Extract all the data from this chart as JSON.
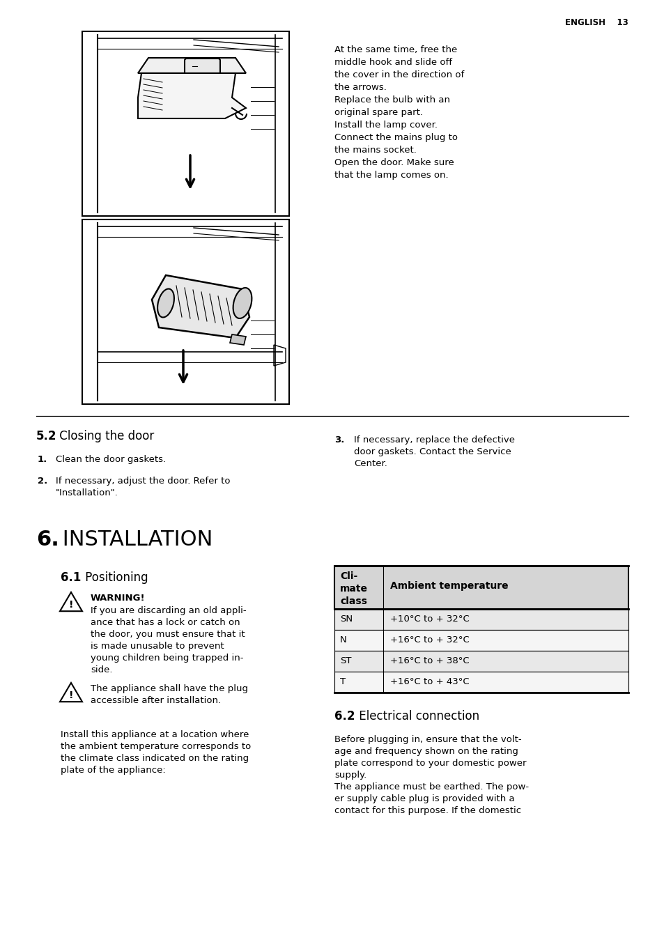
{
  "page_header_right": "ENGLISH    13",
  "right_col_text": [
    "At the same time, free the",
    "middle hook and slide off",
    "the cover in the direction of",
    "the arrows.",
    "Replace the bulb with an",
    "original spare part.",
    "Install the lamp cover.",
    "Connect the mains plug to",
    "the mains socket.",
    "Open the door. Make sure",
    "that the lamp comes on."
  ],
  "section_52_bold": "5.2",
  "section_52_rest": " Closing the door",
  "items_52": [
    {
      "num": "1.",
      "text": "Clean the door gaskets."
    },
    {
      "num": "2.",
      "text": "If necessary, adjust the door. Refer to\n\"Installation\"."
    }
  ],
  "item3_num": "3.",
  "item3_lines": [
    "If necessary, replace the defective",
    "door gaskets. Contact the Service",
    "Center."
  ],
  "section_6_bold": "6.",
  "section_6_rest": " INSTALLATION",
  "section_61_bold": "6.1",
  "section_61_rest": " Positioning",
  "warning_title": "WARNING!",
  "warning_lines": [
    "If you are discarding an old appli-",
    "ance that has a lock or catch on",
    "the door, you must ensure that it",
    "is made unusable to prevent",
    "young children being trapped in-",
    "side."
  ],
  "warning2_lines": [
    "The appliance shall have the plug",
    "accessible after installation."
  ],
  "positioning_lines": [
    "Install this appliance at a location where",
    "the ambient temperature corresponds to",
    "the climate class indicated on the rating",
    "plate of the appliance:"
  ],
  "table_h1": "Cli-\nmate\nclass",
  "table_h2": "Ambient temperature",
  "table_rows": [
    {
      "c": "SN",
      "t": "+10°C to + 32°C"
    },
    {
      "c": "N",
      "t": "+16°C to + 32°C"
    },
    {
      "c": "ST",
      "t": "+16°C to + 38°C"
    },
    {
      "c": "T",
      "t": "+16°C to + 43°C"
    }
  ],
  "section_62_bold": "6.2",
  "section_62_rest": " Electrical connection",
  "section_62_lines": [
    "Before plugging in, ensure that the volt-",
    "age and frequency shown on the rating",
    "plate correspond to your domestic power",
    "supply.",
    "The appliance must be earthed. The pow-",
    "er supply cable plug is provided with a",
    "contact for this purpose. If the domestic"
  ],
  "bg": "#ffffff"
}
